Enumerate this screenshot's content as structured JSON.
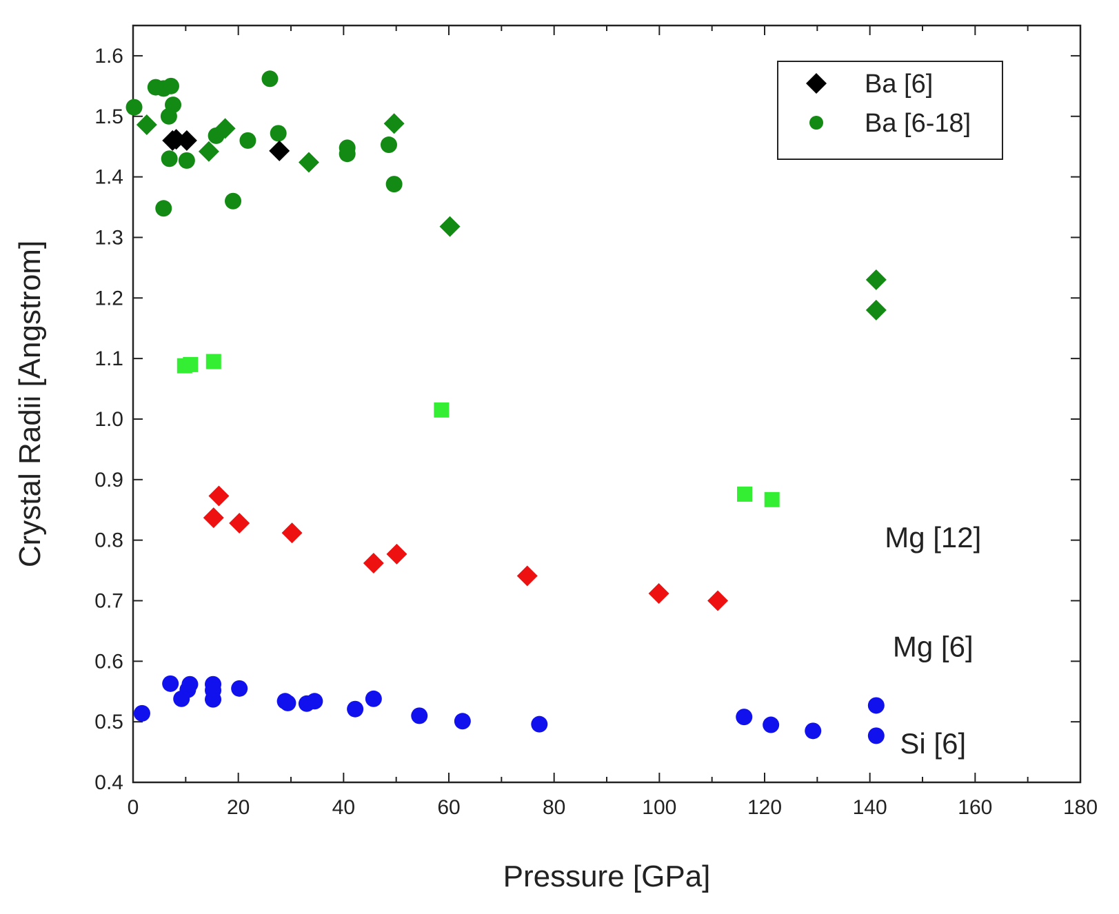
{
  "chart_data": {
    "type": "scatter",
    "title": "",
    "xlabel": "Pressure [GPa]",
    "ylabel": "Crystal Radii [Angstrom]",
    "xlim": [
      0,
      180
    ],
    "ylim": [
      0.4,
      1.65
    ],
    "x_ticks": [
      0,
      20,
      40,
      60,
      80,
      100,
      120,
      140,
      160,
      180
    ],
    "y_ticks": [
      0.4,
      0.5,
      0.6,
      0.7,
      0.8,
      0.9,
      1.0,
      1.1,
      1.2,
      1.3,
      1.4,
      1.5,
      1.6
    ],
    "legend": {
      "position": "top-right",
      "entries": [
        {
          "label": "Ba [6]",
          "marker": "diamond",
          "color": "#000000"
        },
        {
          "label": "Ba [6-18]",
          "marker": "circle",
          "color": "#138a13"
        }
      ]
    },
    "annotations": [
      {
        "text": "Mg [12]",
        "x": 152,
        "y": 0.805
      },
      {
        "text": "Mg [6]",
        "x": 152,
        "y": 0.625
      },
      {
        "text": "Si [6]",
        "x": 152,
        "y": 0.465
      }
    ],
    "series": [
      {
        "name": "Ba [6-18] circles",
        "marker": "circle",
        "color": "#138a13",
        "points": [
          [
            0.2,
            1.515
          ],
          [
            4.3,
            1.548
          ],
          [
            5.8,
            1.546
          ],
          [
            7.2,
            1.55
          ],
          [
            7.6,
            1.519
          ],
          [
            6.8,
            1.5
          ],
          [
            6.9,
            1.43
          ],
          [
            10.2,
            1.427
          ],
          [
            5.8,
            1.348
          ],
          [
            15.8,
            1.468
          ],
          [
            19,
            1.36
          ],
          [
            21.8,
            1.46
          ],
          [
            26,
            1.562
          ],
          [
            27.6,
            1.472
          ],
          [
            40.7,
            1.448
          ],
          [
            40.7,
            1.438
          ],
          [
            49.6,
            1.388
          ],
          [
            48.6,
            1.453
          ]
        ]
      },
      {
        "name": "Ba [6-18] diamonds",
        "marker": "diamond",
        "color": "#138a13",
        "points": [
          [
            2.6,
            1.486
          ],
          [
            14.4,
            1.442
          ],
          [
            17.5,
            1.48
          ],
          [
            33.4,
            1.424
          ],
          [
            49.6,
            1.488
          ],
          [
            60.2,
            1.318
          ],
          [
            141.2,
            1.23
          ],
          [
            141.2,
            1.18
          ]
        ]
      },
      {
        "name": "Ba [6]",
        "marker": "diamond",
        "color": "#000000",
        "points": [
          [
            7.5,
            1.46
          ],
          [
            8.2,
            1.462
          ],
          [
            10.2,
            1.46
          ],
          [
            27.8,
            1.443
          ]
        ]
      },
      {
        "name": "Mg [12]",
        "marker": "square",
        "color": "#33ee33",
        "points": [
          [
            9.8,
            1.088
          ],
          [
            10.9,
            1.09
          ],
          [
            15.3,
            1.095
          ],
          [
            58.6,
            1.015
          ],
          [
            116.2,
            0.876
          ],
          [
            121.4,
            0.867
          ]
        ]
      },
      {
        "name": "Mg [6]",
        "marker": "diamond",
        "color": "#ee1111",
        "points": [
          [
            16.3,
            0.873
          ],
          [
            15.3,
            0.837
          ],
          [
            20.2,
            0.828
          ],
          [
            30.2,
            0.812
          ],
          [
            45.7,
            0.762
          ],
          [
            50.1,
            0.777
          ],
          [
            74.9,
            0.741
          ],
          [
            99.9,
            0.712
          ],
          [
            111.1,
            0.7
          ]
        ]
      },
      {
        "name": "Si [6]",
        "marker": "circle",
        "color": "#1111ee",
        "points": [
          [
            1.7,
            0.514
          ],
          [
            7.1,
            0.563
          ],
          [
            9.2,
            0.538
          ],
          [
            10.4,
            0.553
          ],
          [
            10.8,
            0.562
          ],
          [
            15.2,
            0.562
          ],
          [
            15.2,
            0.552
          ],
          [
            15.2,
            0.537
          ],
          [
            20.2,
            0.555
          ],
          [
            28.9,
            0.534
          ],
          [
            29.4,
            0.531
          ],
          [
            33,
            0.53
          ],
          [
            34.5,
            0.534
          ],
          [
            42.2,
            0.521
          ],
          [
            45.7,
            0.538
          ],
          [
            54.4,
            0.51
          ],
          [
            62.6,
            0.501
          ],
          [
            77.2,
            0.496
          ],
          [
            116.1,
            0.508
          ],
          [
            121.2,
            0.495
          ],
          [
            129.2,
            0.485
          ],
          [
            141.2,
            0.527
          ],
          [
            141.2,
            0.477
          ]
        ]
      }
    ]
  }
}
